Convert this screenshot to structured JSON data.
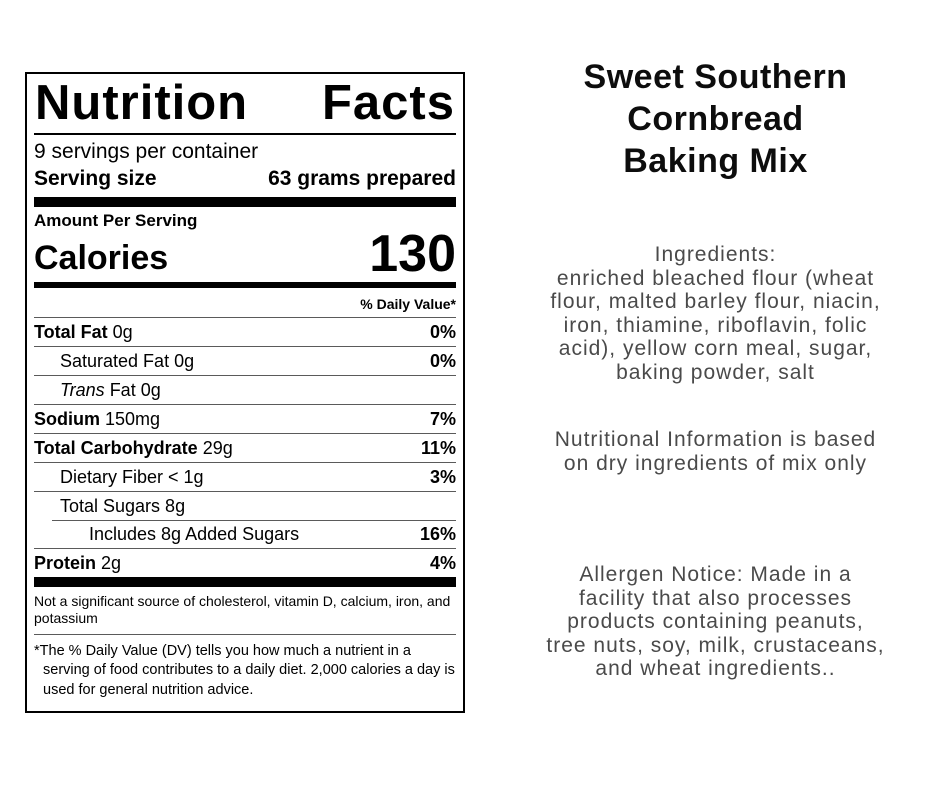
{
  "label": {
    "title_word1": "Nutrition",
    "title_word2": "Facts",
    "servings_per_container": "9 servings per container",
    "serving_size_label": "Serving size",
    "serving_size_value": "63 grams prepared",
    "amount_per_serving": "Amount Per Serving",
    "calories_label": "Calories",
    "calories_value": "130",
    "daily_value_header": "% Daily Value*",
    "rows": [
      {
        "strong": "Total Fat",
        "regular": " 0g",
        "dv": "0%"
      },
      {
        "regular": "Saturated Fat 0g",
        "dv": "0%"
      },
      {
        "italic": "Trans",
        "regular": " Fat 0g",
        "dv": ""
      },
      {
        "strong": "Sodium",
        "regular": " 150mg",
        "dv": "7%"
      },
      {
        "strong": "Total Carbohydrate",
        "regular": " 29g",
        "dv": "11%"
      },
      {
        "regular": "Dietary Fiber < 1g",
        "dv": "3%"
      },
      {
        "regular": "Total Sugars 8g",
        "dv": ""
      },
      {
        "regular": "Includes 8g Added Sugars",
        "dv": "16%"
      },
      {
        "strong": "Protein",
        "regular": " 2g",
        "dv": "4%"
      }
    ],
    "not_significant_note": "Not a significant source of cholesterol, vitamin D, calcium, iron, and potassium",
    "dv_footnote": "*The % Daily Value (DV) tells you how much a nutrient in a serving of food contributes to a daily diet. 2,000 calories a day is used for general nutrition advice."
  },
  "product": {
    "title": "Sweet Southern\nCornbread\nBaking Mix",
    "ingredients": "Ingredients:\nenriched bleached flour (wheat\nflour, malted barley flour, niacin,\niron, thiamine, riboflavin, folic\nacid), yellow corn meal, sugar,\nbaking powder, salt",
    "nutrition_note": "Nutritional Information is based\non dry ingredients of mix only",
    "allergen_notice": "Allergen Notice: Made in a\nfacility that also processes\nproducts containing peanuts,\ntree nuts, soy, milk, crustaceans,\nand wheat ingredients.."
  }
}
